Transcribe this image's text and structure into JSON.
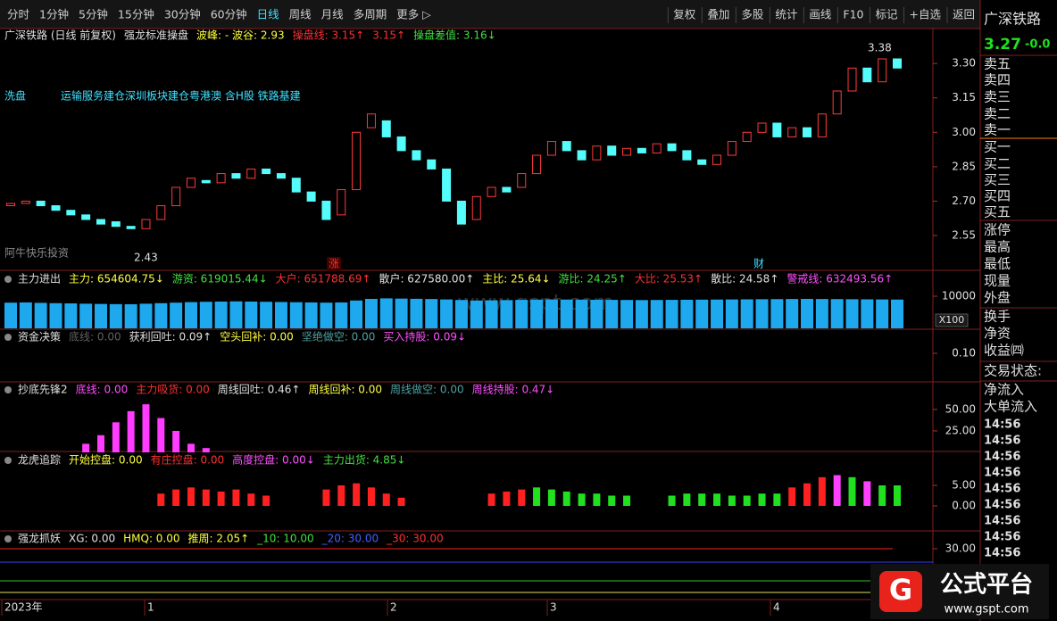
{
  "toolbar": {
    "left": [
      "分时",
      "1分钟",
      "5分钟",
      "15分钟",
      "30分钟",
      "60分钟",
      "日线",
      "周线",
      "月线",
      "多周期",
      "更多 ▷"
    ],
    "active_index": 6,
    "right": [
      "复权",
      "叠加",
      "多股",
      "统计",
      "画线",
      "F10",
      "标记",
      "+自选",
      "返回"
    ]
  },
  "main_header": [
    {
      "text": "广深铁路 (日线 前复权)",
      "color": "#e0e0e0"
    },
    {
      "text": "强龙标准操盘",
      "color": "#e0e0e0"
    },
    {
      "text": "波峰: - 波谷: 2.93",
      "color": "#ffff40"
    },
    {
      "text": "操盘线: 3.15↑",
      "color": "#ff3030"
    },
    {
      "text": "3.15↑",
      "color": "#ff3030"
    },
    {
      "text": "操盘差值: 3.16↓",
      "color": "#40e040"
    }
  ],
  "annotations": [
    {
      "text": "洗盘",
      "color": "#40e0ff"
    },
    {
      "text": "运输服务建仓深圳板块建仓粤港澳 含H股 铁路基建",
      "color": "#40e0ff"
    },
    {
      "text": "阿牛快乐投资",
      "color": "#8a8a8a"
    },
    {
      "text": "涨",
      "color": "#ff3030"
    },
    {
      "text": "财",
      "color": "#40e0ff"
    },
    {
      "text": "3.38",
      "color": "#e0e0e0"
    },
    {
      "text": "2.43",
      "color": "#e0e0e0"
    }
  ],
  "main_chart": {
    "type": "candlestick",
    "open": [
      2.68,
      2.69,
      2.7,
      2.68,
      2.66,
      2.64,
      2.62,
      2.61,
      2.59,
      2.58,
      2.62,
      2.68,
      2.76,
      2.79,
      2.78,
      2.82,
      2.8,
      2.84,
      2.82,
      2.8,
      2.74,
      2.7,
      2.64,
      2.75,
      3.02,
      3.05,
      2.98,
      2.92,
      2.88,
      2.84,
      2.7,
      2.62,
      2.72,
      2.76,
      2.76,
      2.82,
      2.9,
      2.96,
      2.92,
      2.88,
      2.94,
      2.9,
      2.93,
      2.91,
      2.95,
      2.92,
      2.88,
      2.86,
      2.9,
      2.96,
      3.0,
      3.04,
      2.98,
      3.02,
      2.98,
      3.08,
      3.18,
      3.28,
      3.22,
      3.32
    ],
    "close": [
      2.69,
      2.7,
      2.68,
      2.66,
      2.64,
      2.62,
      2.6,
      2.59,
      2.58,
      2.62,
      2.68,
      2.76,
      2.8,
      2.78,
      2.82,
      2.8,
      2.84,
      2.82,
      2.8,
      2.74,
      2.7,
      2.62,
      2.75,
      3.0,
      3.08,
      2.98,
      2.92,
      2.88,
      2.84,
      2.7,
      2.6,
      2.72,
      2.76,
      2.74,
      2.82,
      2.9,
      2.96,
      2.92,
      2.88,
      2.94,
      2.9,
      2.93,
      2.91,
      2.95,
      2.92,
      2.88,
      2.86,
      2.9,
      2.96,
      3.0,
      3.04,
      2.98,
      3.02,
      2.98,
      3.08,
      3.18,
      3.28,
      3.22,
      3.32,
      3.28
    ],
    "up_color": "#ff3a3a",
    "down_color": "#54fcfc",
    "ylim": [
      2.41,
      3.46
    ],
    "yticks": [
      2.55,
      {
        "value": 2.7,
        "label": "2.70"
      },
      2.85,
      {
        "value": 3,
        "label": "3.00"
      },
      3.15,
      {
        "value": 3.3,
        "label": "3.30"
      }
    ]
  },
  "panels": [
    {
      "header": [
        {
          "text": "主力进出",
          "color": "#e0e0e0"
        },
        {
          "text": "主力: 654604.75↓",
          "color": "#ffff40"
        },
        {
          "text": "游资: 619015.44↓",
          "color": "#40e040"
        },
        {
          "text": "大户: 651788.69↑",
          "color": "#ff3030"
        },
        {
          "text": "散户: 627580.00↑",
          "color": "#e0e0e0"
        },
        {
          "text": "主比: 25.64↓",
          "color": "#ffff40"
        },
        {
          "text": "游比: 24.25↑",
          "color": "#40e040"
        },
        {
          "text": "大比: 25.53↑",
          "color": "#ff3030"
        },
        {
          "text": "散比: 24.58↑",
          "color": "#e0e0e0"
        },
        {
          "text": "警戒线: 632493.56↑",
          "color": "#ff50ff"
        }
      ],
      "type": "bar",
      "values": [
        9400,
        9420,
        9380,
        9350,
        9330,
        9300,
        9280,
        9260,
        9250,
        9300,
        9350,
        9400,
        9450,
        9480,
        9500,
        9520,
        9500,
        9480,
        9460,
        9440,
        9420,
        9400,
        9420,
        9600,
        9750,
        9800,
        9780,
        9760,
        9740,
        9700,
        9650,
        9600,
        9620,
        9640,
        9660,
        9680,
        9700,
        9690,
        9680,
        9670,
        9660,
        9650,
        9640,
        9650,
        9660,
        9670,
        9680,
        9690,
        9700,
        9710,
        9720,
        9730,
        9740,
        9750,
        9740,
        9730,
        9720,
        9710,
        9700,
        9690
      ],
      "color": "#1ea8ee",
      "ylim": [
        7000,
        11000
      ],
      "yticks": [
        10000
      ],
      "scale_note": "X100"
    },
    {
      "header": [
        {
          "text": "资金决策",
          "color": "#e0e0e0"
        },
        {
          "text": "底线: 0.00",
          "color": "#606060"
        },
        {
          "text": "获利回吐: 0.09↑",
          "color": "#e0e0e0"
        },
        {
          "text": "空头回补: 0.00",
          "color": "#ffff40"
        },
        {
          "text": "坚绝做空: 0.00",
          "color": "#50a0a0"
        },
        {
          "text": "买入持股: 0.09↓",
          "color": "#ff50ff"
        }
      ],
      "ylim": [
        0,
        0.15
      ],
      "yticks": [
        {
          "value": 0.1,
          "label": "0.10"
        }
      ]
    },
    {
      "header": [
        {
          "text": "抄底先锋2",
          "color": "#e0e0e0"
        },
        {
          "text": "底线: 0.00",
          "color": "#ff50ff"
        },
        {
          "text": "主力吸货: 0.00",
          "color": "#ff3030"
        },
        {
          "text": "周线回吐: 0.46↑",
          "color": "#e0e0e0"
        },
        {
          "text": "周线回补: 0.00",
          "color": "#ffff40"
        },
        {
          "text": "周线做空: 0.00",
          "color": "#50a0a0"
        },
        {
          "text": "周线持股: 0.47↓",
          "color": "#ff50ff"
        }
      ],
      "type": "bar",
      "values": [
        0,
        0,
        0,
        0,
        0,
        10,
        20,
        35,
        48,
        56,
        40,
        25,
        10,
        5,
        0,
        0,
        0,
        0,
        0,
        0,
        0,
        0,
        0,
        0,
        0,
        0,
        0,
        0,
        0,
        0,
        0,
        0,
        0,
        0,
        0,
        0,
        0,
        0,
        0,
        0,
        0,
        0,
        0,
        0,
        0,
        0,
        0,
        0,
        0,
        0,
        0,
        0,
        0,
        0,
        0,
        0,
        0,
        0,
        0,
        0
      ],
      "color": "#ff3cff",
      "ylim": [
        0,
        80
      ],
      "yticks": [
        {
          "value": 50,
          "label": "50.00"
        },
        {
          "value": 25,
          "label": "25.00"
        }
      ]
    },
    {
      "header": [
        {
          "text": "龙虎追踪",
          "color": "#e0e0e0"
        },
        {
          "text": "开始控盘: 0.00",
          "color": "#ffff40"
        },
        {
          "text": "有庄控盘: 0.00",
          "color": "#ff3030"
        },
        {
          "text": "高度控盘: 0.00↓",
          "color": "#ff50ff"
        },
        {
          "text": "主力出货: 4.85↓",
          "color": "#40e040"
        }
      ],
      "type": "bar",
      "values": [
        0,
        0,
        0,
        0,
        0,
        0,
        0,
        0,
        0,
        0,
        3,
        4,
        4.5,
        4,
        3.5,
        4,
        3,
        2.5,
        0,
        0,
        0,
        4,
        5,
        5.5,
        4.5,
        3,
        2,
        0,
        0,
        0,
        0,
        0,
        3,
        3.5,
        4,
        4.5,
        4,
        3.5,
        3,
        3,
        2.5,
        2.5,
        0,
        0,
        2.5,
        3,
        3,
        3,
        2.5,
        2.5,
        3,
        3,
        4.5,
        5.5,
        7,
        7.5,
        7,
        6,
        5,
        5
      ],
      "colors": [
        "#ff2020",
        "#ff2020",
        "#ff2020",
        "#ff2020",
        "#ff2020",
        "#ff2020",
        "#ff2020",
        "#ff2020",
        "#ff2020",
        "#ff2020",
        "#ff2020",
        "#ff2020",
        "#ff2020",
        "#ff2020",
        "#ff2020",
        "#ff2020",
        "#ff2020",
        "#ff2020",
        "#ff2020",
        "#ff2020",
        "#ff2020",
        "#ff2020",
        "#ff2020",
        "#ff2020",
        "#ff2020",
        "#ff2020",
        "#ff2020",
        "#ff2020",
        "#ff2020",
        "#ff2020",
        "#ff2020",
        "#ff2020",
        "#ff2020",
        "#ff2020",
        "#ff2020",
        "#20e020",
        "#20e020",
        "#20e020",
        "#20e020",
        "#20e020",
        "#20e020",
        "#20e020",
        "#20e020",
        "#20e020",
        "#20e020",
        "#20e020",
        "#20e020",
        "#20e020",
        "#20e020",
        "#20e020",
        "#20e020",
        "#20e020",
        "#ff2020",
        "#ff2020",
        "#ff2020",
        "#ff40ff",
        "#20e020",
        "#ff40ff",
        "#20e020",
        "#20e020"
      ],
      "ylim": [
        -1,
        9
      ],
      "yticks": [
        {
          "value": 5,
          "label": "5.00"
        },
        {
          "value": 0,
          "label": "0.00"
        }
      ]
    },
    {
      "header": [
        {
          "text": "强龙抓妖",
          "color": "#e0e0e0"
        },
        {
          "text": "XG: 0.00",
          "color": "#e0e0e0"
        },
        {
          "text": "HMQ: 0.00",
          "color": "#ffff40"
        },
        {
          "text": "推周: 2.05↑",
          "color": "#ffff40"
        },
        {
          "text": "_10: 10.00",
          "color": "#40e040"
        },
        {
          "text": "_20: 30.00",
          "color": "#4060ff"
        },
        {
          "text": "_30: 30.00",
          "color": "#ff3030"
        }
      ],
      "ylim": [
        0,
        40
      ],
      "yticks": [
        {
          "value": 30,
          "label": "30.00"
        }
      ]
    }
  ],
  "date_axis": [
    "2023年",
    "1",
    "2",
    "3",
    "4"
  ],
  "watermark": "www.gspt.com",
  "logo": {
    "title": "公式平台",
    "url": "www.gspt.com"
  },
  "sidebar": {
    "name": "广深铁路",
    "price": "3.27",
    "change": "-0.0",
    "items": [
      "卖五",
      "卖四",
      "卖三",
      "卖二",
      "卖一",
      "买一",
      "买二",
      "买三",
      "买四",
      "买五",
      "涨停",
      "最高",
      "最低",
      "现量",
      "外盘",
      "换手",
      "净资",
      "收益㈣",
      "交易状态:",
      "净流入",
      "大单流入"
    ],
    "times": [
      "14:56",
      "14:56",
      "14:56",
      "14:56",
      "14:56",
      "14:56",
      "14:56",
      "14:56",
      "14:56"
    ]
  }
}
